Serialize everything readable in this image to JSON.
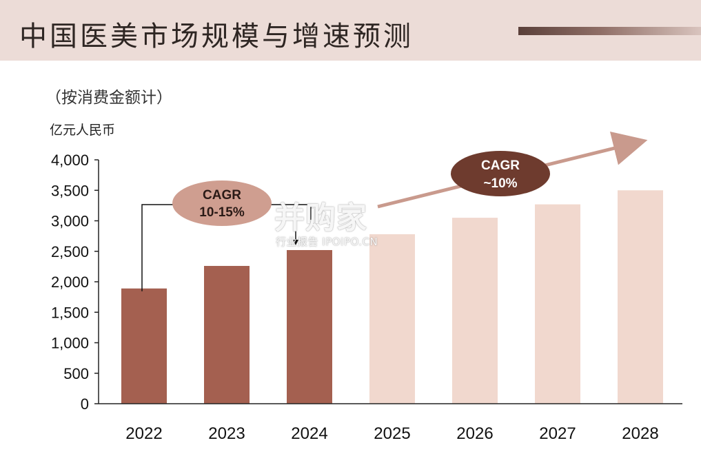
{
  "header": {
    "title": "中国医美市场规模与增速预测",
    "subtitle": "（按消费金额计）",
    "unit": "亿元人民币"
  },
  "watermark": {
    "main": "并购家",
    "sub": "行业报告 IPOIPO.CN"
  },
  "colors": {
    "actual_bar": "#a46050",
    "forecast_bar": "#f1d8ce",
    "header_bg": "#ecdcd7",
    "badge_light": "#cf9e90",
    "badge_dark": "#6e3b2e",
    "arrow": "#c99a8d"
  },
  "annotations": {
    "cagr_past_line1": "CAGR",
    "cagr_past_line2": "10-15%",
    "cagr_future_line1": "CAGR",
    "cagr_future_line2": "~10%"
  },
  "chart_data": {
    "type": "bar",
    "title": "中国医美市场规模与增速预测",
    "subtitle": "（按消费金额计）",
    "ylabel": "亿元人民币",
    "xlabel": "",
    "categories": [
      "2022",
      "2023",
      "2024",
      "2025",
      "2026",
      "2027",
      "2028"
    ],
    "values": [
      1890,
      2260,
      2520,
      2780,
      3050,
      3270,
      3500
    ],
    "forecast": [
      false,
      false,
      false,
      true,
      true,
      true,
      true
    ],
    "ylim": [
      0,
      4000
    ],
    "yticks": [
      0,
      500,
      1000,
      1500,
      2000,
      2500,
      3000,
      3500,
      4000
    ],
    "ytick_labels": [
      "0",
      "500",
      "1,000",
      "1,500",
      "2,000",
      "2,500",
      "3,000",
      "3,500",
      "4,000"
    ],
    "grid": false,
    "legend": "none"
  }
}
